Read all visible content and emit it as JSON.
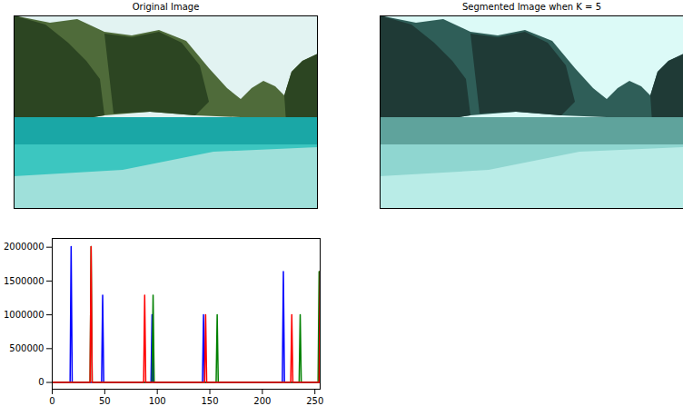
{
  "chart_data": [
    {
      "type": "image",
      "title": "Original Image"
    },
    {
      "type": "image",
      "title": "Segmented Image when K = 5"
    },
    {
      "type": "line",
      "x": [
        0,
        17,
        18,
        19,
        36,
        37,
        38,
        47,
        48,
        49,
        87,
        88,
        89,
        94,
        95,
        96,
        97,
        143,
        144,
        145,
        146,
        147,
        156,
        157,
        158,
        219,
        220,
        221,
        227,
        228,
        229,
        235,
        236,
        237,
        253,
        254,
        255
      ],
      "series": [
        {
          "color": "blue",
          "values": [
            0,
            0,
            2010000,
            0,
            0,
            0,
            0,
            0,
            1290000,
            0,
            0,
            0,
            0,
            0,
            1000000,
            0,
            0,
            0,
            1000000,
            0,
            0,
            0,
            0,
            0,
            0,
            0,
            1640000,
            0,
            0,
            0,
            0,
            0,
            0,
            0,
            0,
            0,
            0
          ]
        },
        {
          "color": "green",
          "values": [
            0,
            0,
            0,
            0,
            0,
            2010000,
            0,
            0,
            0,
            0,
            0,
            0,
            0,
            0,
            0,
            1290000,
            0,
            0,
            0,
            0,
            0,
            0,
            0,
            1000000,
            0,
            0,
            0,
            0,
            0,
            0,
            0,
            0,
            1000000,
            0,
            0,
            1640000,
            0
          ]
        },
        {
          "color": "red",
          "values": [
            0,
            0,
            0,
            0,
            0,
            2010000,
            0,
            0,
            0,
            0,
            0,
            1290000,
            0,
            0,
            0,
            0,
            0,
            0,
            0,
            0,
            1000000,
            0,
            0,
            0,
            0,
            0,
            0,
            0,
            0,
            1000000,
            0,
            0,
            0,
            0,
            0,
            0,
            1640000
          ]
        }
      ],
      "xlim": [
        0,
        255
      ],
      "xticks": [
        0,
        50,
        100,
        150,
        200,
        250
      ],
      "ylim": [
        -100000,
        2130000
      ],
      "yticks": [
        0,
        500000,
        1000000,
        1500000,
        2000000
      ],
      "grid": false
    }
  ]
}
